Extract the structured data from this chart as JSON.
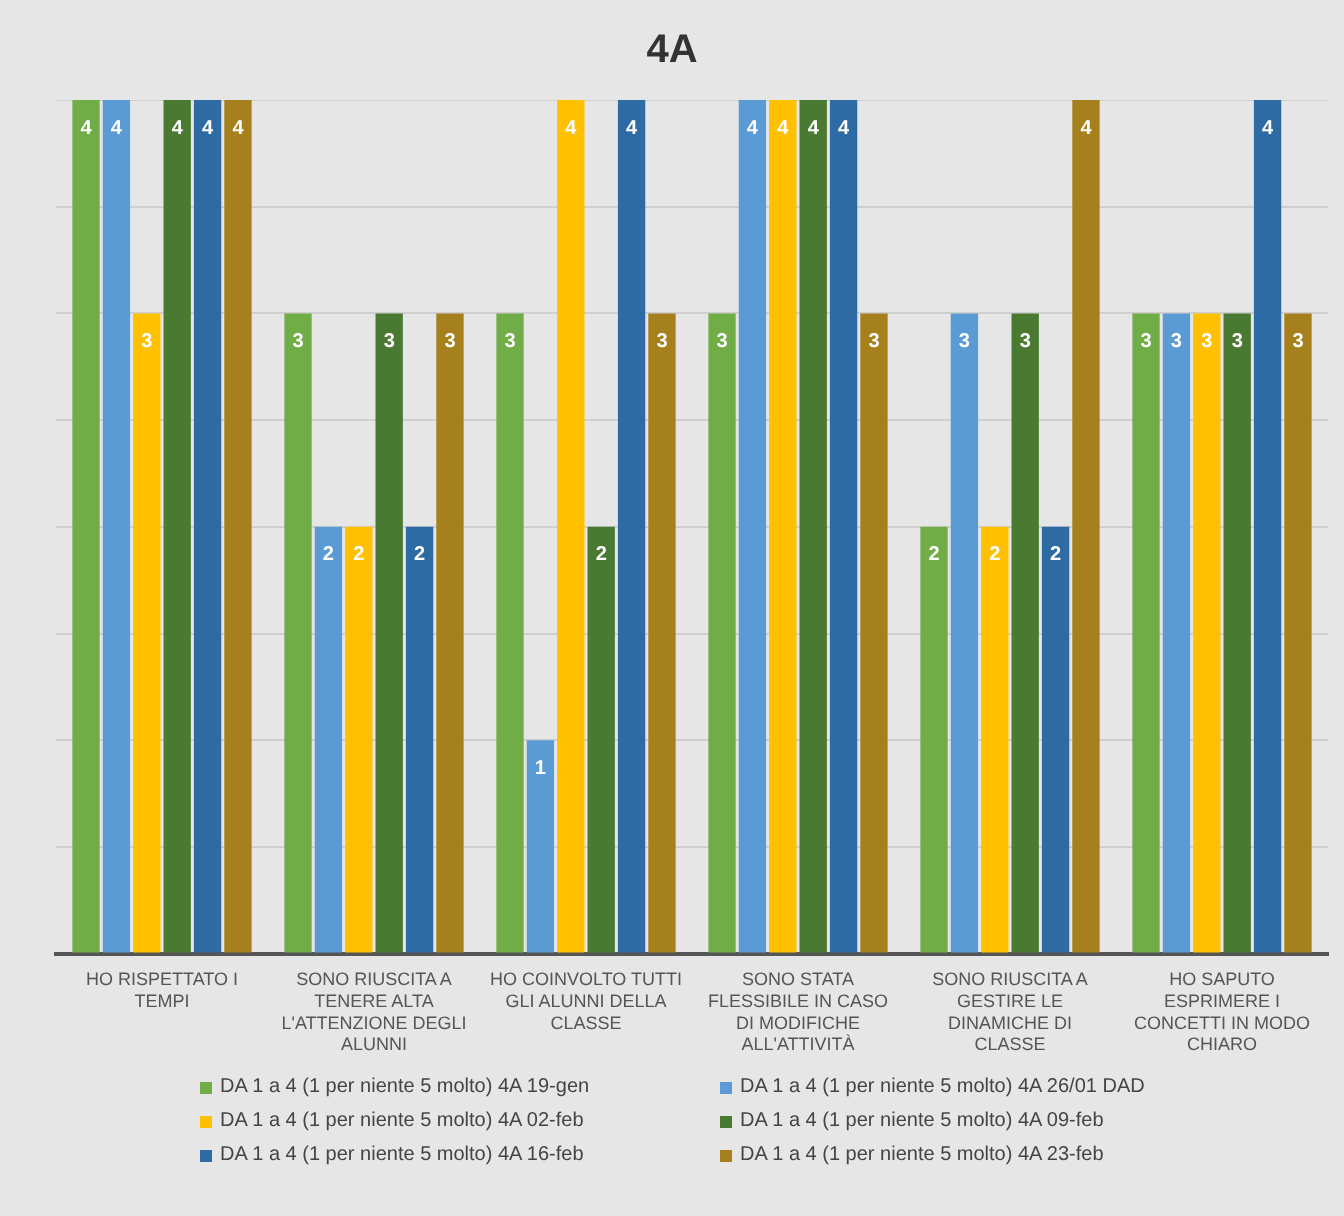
{
  "chart_data": {
    "type": "bar",
    "title": "4A",
    "categories": [
      "HO RISPETTATO I TEMPI",
      "SONO RIUSCITA A TENERE ALTA L'ATTENZIONE DEGLI ALUNNI",
      "HO COINVOLTO TUTTI GLI ALUNNI DELLA CLASSE",
      "SONO STATA FLESSIBILE IN CASO DI MODIFICHE ALL'ATTIVITÀ",
      "SONO RIUSCITA A GESTIRE LE DINAMICHE DI CLASSE",
      "HO SAPUTO ESPRIMERE I CONCETTI IN MODO CHIARO"
    ],
    "series": [
      {
        "name": "DA 1 a 4 (1 per niente 5 molto) 4A 19-gen",
        "color": "#70ad47",
        "values": [
          4,
          3,
          3,
          3,
          2,
          3
        ]
      },
      {
        "name": "DA 1 a 4 (1 per niente 5 molto) 4A 26/01 DAD",
        "color": "#5b9bd5",
        "values": [
          4,
          2,
          1,
          4,
          3,
          3
        ]
      },
      {
        "name": "DA 1 a 4 (1 per niente 5 molto) 4A 02-feb",
        "color": "#ffc000",
        "values": [
          3,
          2,
          4,
          4,
          2,
          3
        ]
      },
      {
        "name": "DA 1 a 4 (1 per niente 5 molto) 4A 09-feb",
        "color": "#4a7a32",
        "values": [
          4,
          3,
          2,
          4,
          3,
          3
        ]
      },
      {
        "name": "DA 1 a 4 (1 per niente 5 molto) 4A 16-feb",
        "color": "#2e6aa3",
        "values": [
          4,
          2,
          4,
          4,
          2,
          4
        ]
      },
      {
        "name": "DA 1 a 4 (1 per niente 5 molto) 4A 23-feb",
        "color": "#a5801c",
        "values": [
          4,
          3,
          3,
          3,
          4,
          3
        ]
      }
    ],
    "ylim": [
      0,
      4
    ],
    "yticks": [
      {
        "value": 0,
        "label": null
      },
      {
        "value": 0.5,
        "label": null
      },
      {
        "value": 1,
        "label": null
      },
      {
        "value": 1.5,
        "label": null
      },
      {
        "value": 2,
        "label": null
      },
      {
        "value": 2.5,
        "label": null
      },
      {
        "value": 3,
        "label": null
      },
      {
        "value": 3.5,
        "label": null
      },
      {
        "value": 4,
        "label": null
      }
    ],
    "tick_labels": "x",
    "grid": "y",
    "data_labels": true,
    "legend": "bottom"
  }
}
